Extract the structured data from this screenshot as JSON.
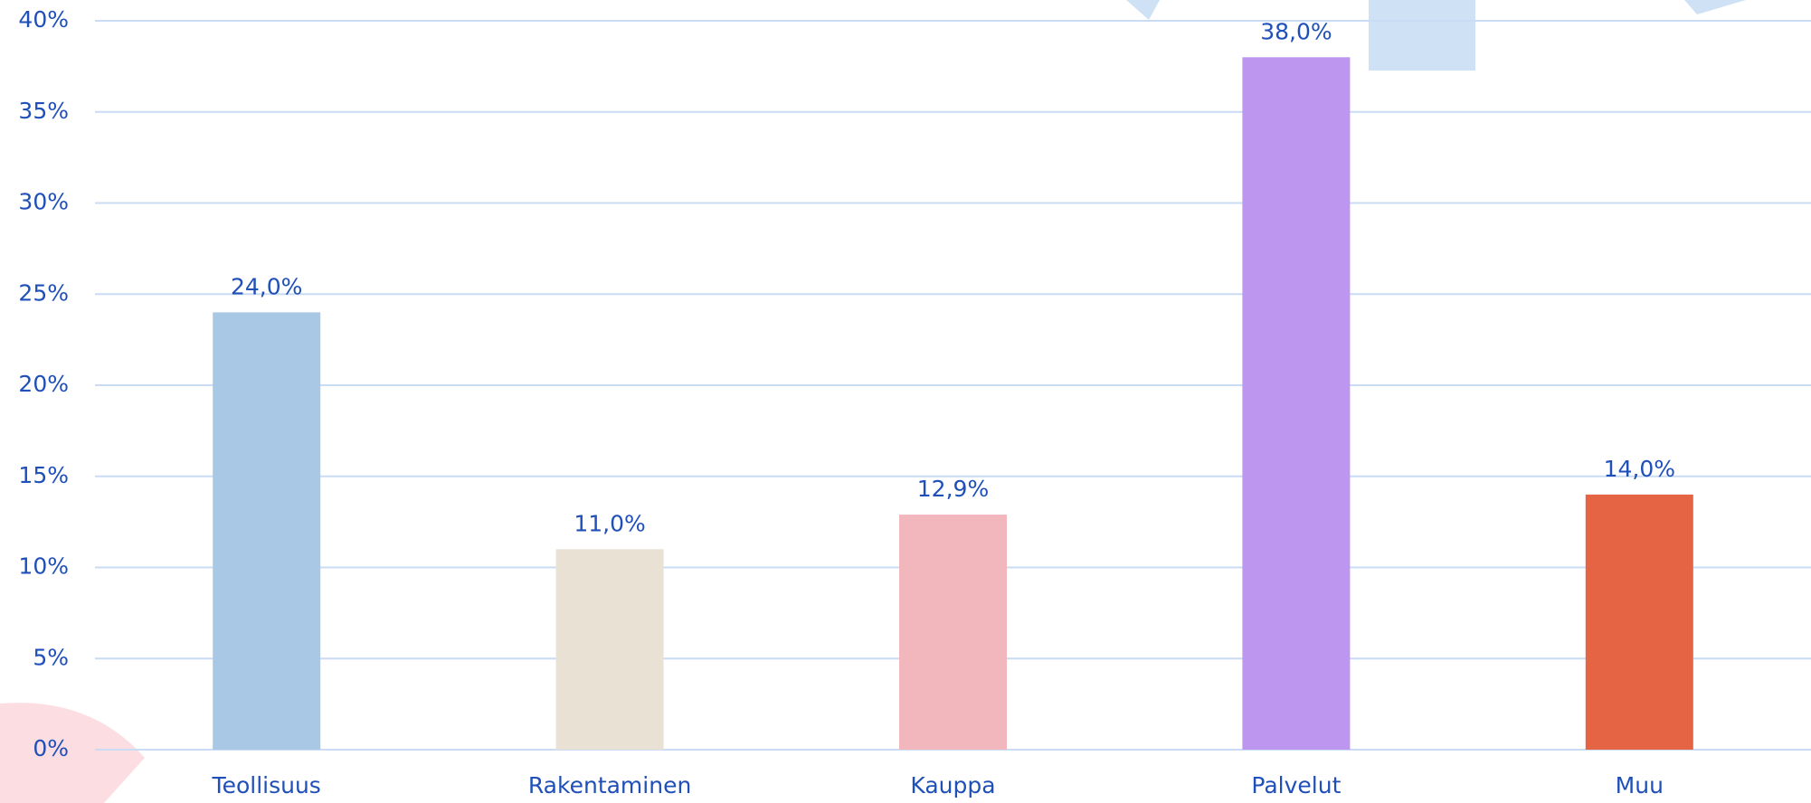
{
  "chart_data": {
    "type": "bar",
    "categories": [
      "Teollisuus",
      "Rakentaminen",
      "Kauppa",
      "Palvelut",
      "Muu"
    ],
    "values": [
      24.0,
      11.0,
      12.9,
      38.0,
      14.0
    ],
    "value_labels": [
      "24,0%",
      "11,0%",
      "12,9%",
      "38,0%",
      "14,0%"
    ],
    "colors": [
      "#a8c8e6",
      "#e8e1d4",
      "#f2b6bd",
      "#bd96f0",
      "#e56443"
    ],
    "ylim": [
      0,
      40
    ],
    "yticks": [
      {
        "value": 0,
        "label": "0%"
      },
      {
        "value": 5,
        "label": "5%"
      },
      {
        "value": 10,
        "label": "10%"
      },
      {
        "value": 15,
        "label": "15%"
      },
      {
        "value": 20,
        "label": "20%"
      },
      {
        "value": 25,
        "label": "25%"
      },
      {
        "value": 30,
        "label": "30%"
      },
      {
        "value": 35,
        "label": "35%"
      },
      {
        "value": 40,
        "label": "40%"
      }
    ],
    "grid": true
  }
}
